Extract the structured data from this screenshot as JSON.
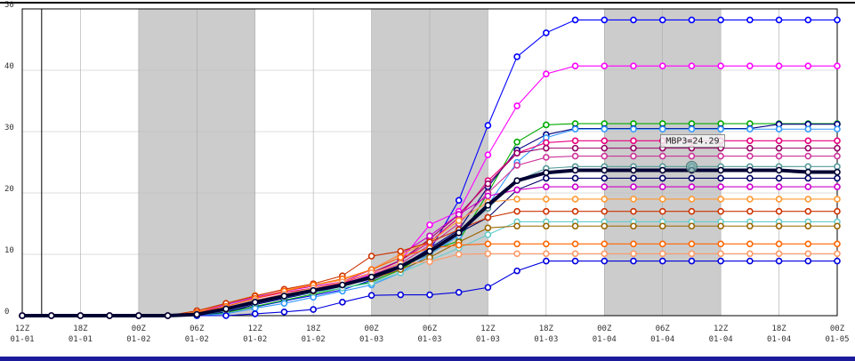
{
  "chart_data": {
    "type": "line",
    "x": [
      0,
      3,
      6,
      9,
      12,
      15,
      18,
      21,
      24,
      27,
      30,
      33,
      36,
      39,
      42,
      45,
      48,
      51,
      54,
      57,
      60,
      63,
      66,
      69,
      72,
      75,
      78,
      81,
      84
    ],
    "xlim": [
      0,
      84
    ],
    "xticks": [
      {
        "value": 0,
        "label": "12Z"
      },
      {
        "value": 6,
        "label": "18Z"
      },
      {
        "value": 12,
        "label": "00Z"
      },
      {
        "value": 18,
        "label": "06Z"
      },
      {
        "value": 24,
        "label": "12Z"
      },
      {
        "value": 30,
        "label": "18Z"
      },
      {
        "value": 36,
        "label": "00Z"
      },
      {
        "value": 42,
        "label": "06Z"
      },
      {
        "value": 48,
        "label": "12Z"
      },
      {
        "value": 54,
        "label": "18Z"
      },
      {
        "value": 60,
        "label": "00Z"
      },
      {
        "value": 66,
        "label": "06Z"
      },
      {
        "value": 72,
        "label": "12Z"
      },
      {
        "value": 78,
        "label": "18Z"
      },
      {
        "value": 84,
        "label": "00Z"
      }
    ],
    "xtick_dates": [
      "01-01",
      "01-01",
      "01-02",
      "01-02",
      "01-02",
      "01-02",
      "01-03",
      "01-03",
      "01-03",
      "01-03",
      "01-04",
      "01-04",
      "01-04",
      "01-04",
      "01-05"
    ],
    "ylim": [
      0,
      50
    ],
    "yticks": [
      0,
      10,
      20,
      30,
      40,
      50
    ],
    "grid": true,
    "shaded_ranges": [
      [
        12,
        24
      ],
      [
        36,
        48
      ],
      [
        60,
        72
      ]
    ],
    "time_marker": 2,
    "annotation": {
      "text": "MBP3=24.29",
      "x": 69,
      "y": 24.29
    },
    "series": [
      {
        "color": "#0000ff",
        "values": [
          0,
          0,
          0,
          0,
          0,
          0,
          0.2,
          0.8,
          1.4,
          2.4,
          3.3,
          4.2,
          5.8,
          7.8,
          10.6,
          18.8,
          31,
          42.2,
          46.1,
          48.2,
          48.2,
          48.2,
          48.2,
          48.2,
          48.2,
          48.2,
          48.2,
          48.2,
          48.2
        ]
      },
      {
        "color": "#ff00ff",
        "values": [
          0,
          0,
          0,
          0,
          0,
          0,
          0.3,
          1,
          2,
          3,
          4,
          5,
          6.8,
          9,
          14.8,
          17,
          26.2,
          34.2,
          39.4,
          40.7,
          40.7,
          40.7,
          40.7,
          40.7,
          40.7,
          40.7,
          40.7,
          40.7,
          40.7
        ]
      },
      {
        "color": "#00aa00",
        "values": [
          0,
          0,
          0,
          0,
          0,
          0,
          0,
          0.5,
          1.5,
          2.5,
          3.5,
          4.5,
          5.5,
          7.5,
          10.5,
          12.2,
          20,
          28.3,
          31.1,
          31.3,
          31.3,
          31.3,
          31.3,
          31.3,
          31.3,
          31.3,
          31.3,
          31.3,
          31.3
        ]
      },
      {
        "color": "#000080",
        "values": [
          0,
          0,
          0,
          0,
          0,
          0,
          0.1,
          0.6,
          1.8,
          2.8,
          3.8,
          4.8,
          6,
          8,
          11,
          14,
          21,
          27,
          29.5,
          30.5,
          30.5,
          30.5,
          30.5,
          30.5,
          30.5,
          30.5,
          31.2,
          31.2,
          31.2
        ]
      },
      {
        "color": "#3399ff",
        "values": [
          0,
          0,
          0,
          0,
          0,
          0,
          0,
          0.3,
          1.2,
          2,
          3,
          4,
          5,
          7,
          10,
          13,
          18,
          25,
          29,
          30.4,
          30.4,
          30.4,
          30.4,
          30.4,
          30.4,
          30.4,
          30.4,
          30.4,
          30.4
        ]
      },
      {
        "color": "#e6007e",
        "values": [
          0,
          0,
          0,
          0,
          0,
          0,
          0.4,
          1.5,
          2.8,
          3.8,
          4.5,
          5.3,
          7,
          9,
          12,
          16,
          22,
          26.5,
          28.2,
          28.5,
          28.5,
          28.5,
          28.5,
          28.5,
          28.5,
          28.5,
          28.5,
          28.5,
          28.5
        ]
      },
      {
        "color": "#990066",
        "values": [
          0,
          0,
          0,
          0,
          0,
          0,
          0.3,
          1.2,
          2.5,
          3.5,
          4.5,
          5.5,
          7,
          9,
          12.5,
          16.5,
          21.5,
          26.5,
          27.3,
          27.3,
          27.3,
          27.3,
          27.3,
          27.3,
          27.3,
          27.3,
          27.3,
          27.3,
          27.3
        ]
      },
      {
        "color": "#cc3399",
        "values": [
          0,
          0,
          0,
          0,
          0,
          0,
          0.2,
          1,
          2.3,
          3.3,
          4.3,
          5.2,
          6.6,
          8.5,
          11.5,
          15,
          20,
          24.5,
          25.8,
          26,
          26,
          26,
          26,
          26,
          26,
          26,
          26,
          26,
          26
        ]
      },
      {
        "color": "#559999",
        "values": [
          0,
          0,
          0,
          0,
          0,
          0,
          0.2,
          1,
          2,
          3,
          4,
          5,
          6.2,
          8,
          10,
          13.5,
          17.5,
          22,
          24,
          24.3,
          24.3,
          24.3,
          24.3,
          24.3,
          24.3,
          24.3,
          24.3,
          24.3,
          24.3
        ]
      },
      {
        "color": "#000066",
        "values": [
          0,
          0,
          0,
          0,
          0,
          0,
          0.2,
          1,
          2,
          3,
          4,
          4.8,
          6,
          8,
          10.5,
          13.5,
          16,
          20.5,
          22.4,
          22.4,
          22.4,
          22.4,
          22.4,
          22.4,
          22.4,
          22.4,
          22.4,
          22.4,
          22.4
        ]
      },
      {
        "color": "#cc00cc",
        "values": [
          0,
          0,
          0,
          0,
          0,
          0,
          0.5,
          1.8,
          3,
          4,
          4.8,
          5.5,
          7.5,
          10,
          13,
          16.5,
          19.5,
          20.5,
          21,
          21,
          21,
          21,
          21,
          21,
          21,
          21,
          21,
          21,
          21
        ]
      },
      {
        "color": "#ff9933",
        "values": [
          0,
          0,
          0,
          0,
          0,
          0,
          0.6,
          2,
          3.3,
          4.2,
          5,
          5.8,
          7.5,
          10,
          12,
          15.5,
          18.5,
          19,
          19,
          19,
          19,
          19,
          19,
          19,
          19,
          19,
          19,
          19,
          19
        ]
      },
      {
        "color": "#cc3300",
        "values": [
          0,
          0,
          0,
          0,
          0,
          0,
          0.8,
          2,
          3.2,
          4.3,
          5.2,
          6.5,
          9.7,
          10.5,
          12,
          14,
          16,
          17,
          17,
          17,
          17,
          17,
          17,
          17,
          17,
          17,
          17,
          17,
          17
        ]
      },
      {
        "color": "#66cccc",
        "values": [
          0,
          0,
          0,
          0,
          0,
          0,
          0,
          0.8,
          2,
          3,
          3.8,
          4.5,
          5.3,
          7,
          9,
          11,
          13.2,
          15.3,
          15.3,
          15.3,
          15.3,
          15.3,
          15.3,
          15.3,
          15.3,
          15.3,
          15.3,
          15.3,
          15.3
        ]
      },
      {
        "color": "#996600",
        "values": [
          0,
          0,
          0,
          0,
          0,
          0,
          0.2,
          1,
          2.2,
          3.2,
          4,
          5,
          6,
          7.5,
          9.5,
          12,
          14.3,
          14.6,
          14.6,
          14.6,
          14.6,
          14.6,
          14.6,
          14.6,
          14.6,
          14.6,
          14.6,
          14.6,
          14.6
        ]
      },
      {
        "color": "#ff6600",
        "values": [
          0,
          0,
          0,
          0,
          0,
          0,
          0.5,
          1.5,
          2.8,
          4,
          5,
          6,
          7.5,
          9.5,
          11,
          11.5,
          11.7,
          11.7,
          11.7,
          11.7,
          11.7,
          11.7,
          11.7,
          11.7,
          11.7,
          11.7,
          11.7,
          11.7,
          11.7
        ]
      },
      {
        "color": "#ff9966",
        "values": [
          0,
          0,
          0,
          0,
          0,
          0,
          0.3,
          1.2,
          2.5,
          3.5,
          4.5,
          5.5,
          7,
          8.5,
          8.8,
          10,
          10.1,
          10.1,
          10.1,
          10.1,
          10.1,
          10.1,
          10.1,
          10.1,
          10.1,
          10.1,
          10.1,
          10.1,
          10.1
        ]
      },
      {
        "color": "#0000dd",
        "values": [
          0,
          0,
          0,
          0,
          0,
          0,
          0,
          0,
          0.3,
          0.6,
          1,
          2.2,
          3.3,
          3.4,
          3.4,
          3.8,
          4.6,
          7.3,
          8.9,
          8.9,
          8.9,
          8.9,
          8.9,
          8.9,
          8.9,
          8.9,
          8.9,
          8.9,
          8.9
        ]
      },
      {
        "color": "#000033",
        "mean": true,
        "values": [
          0,
          0,
          0,
          0,
          0,
          0,
          0.2,
          1.1,
          2.2,
          3.2,
          4.1,
          5,
          6.3,
          8,
          10.5,
          13.5,
          18,
          22,
          23.3,
          23.7,
          23.7,
          23.7,
          23.7,
          23.7,
          23.7,
          23.7,
          23.7,
          23.4,
          23.4
        ]
      }
    ]
  }
}
